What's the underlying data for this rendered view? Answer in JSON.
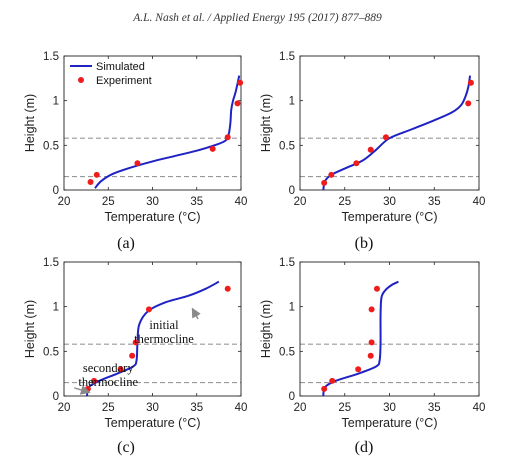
{
  "header": "A.L. Nash et al. / Applied Energy 195 (2017) 877–889",
  "colors": {
    "simulated": "#1f23c4",
    "experiment": "#ee1c1c",
    "dashed": "#999999",
    "arrow": "#8a8a8a"
  },
  "chart_data": [
    {
      "type": "line",
      "panel_label": "(a)",
      "xlabel": "Temperature (°C)",
      "ylabel": "Height (m)",
      "xlim": [
        20,
        40
      ],
      "ylim": [
        0,
        1.5
      ],
      "xticks": [
        20,
        25,
        30,
        35,
        40
      ],
      "yticks": [
        0,
        0.5,
        1,
        1.5
      ],
      "tick_labels_y": [
        "0",
        "0.5",
        "1",
        "1.5"
      ],
      "dashed_lines_y": [
        0.15,
        0.58
      ],
      "legend": {
        "position": "top-left",
        "entries": [
          "Simulated",
          "Experiment"
        ]
      },
      "series": [
        {
          "name": "Simulated",
          "kind": "line",
          "x": [
            23.5,
            24.2,
            25.5,
            27.5,
            30.0,
            32.5,
            35.0,
            37.0,
            38.2,
            38.6,
            38.8,
            38.9,
            39.1,
            39.4,
            39.8
          ],
          "y": [
            0.02,
            0.1,
            0.18,
            0.25,
            0.32,
            0.38,
            0.44,
            0.5,
            0.55,
            0.62,
            0.75,
            0.9,
            1.0,
            1.1,
            1.28
          ]
        },
        {
          "name": "Experiment",
          "kind": "scatter",
          "x": [
            23.0,
            23.7,
            28.3,
            36.8,
            38.5,
            39.6,
            39.9
          ],
          "y": [
            0.09,
            0.17,
            0.3,
            0.46,
            0.59,
            0.97,
            1.2
          ]
        }
      ]
    },
    {
      "type": "line",
      "panel_label": "(b)",
      "xlabel": "Temperature (°C)",
      "ylabel": "Height (m)",
      "xlim": [
        20,
        40
      ],
      "ylim": [
        0,
        1.5
      ],
      "xticks": [
        20,
        25,
        30,
        35,
        40
      ],
      "yticks": [
        0,
        0.5,
        1,
        1.5
      ],
      "tick_labels_y": [
        "0",
        "0.5",
        "1",
        "1.5"
      ],
      "dashed_lines_y": [
        0.15,
        0.58
      ],
      "series": [
        {
          "name": "Simulated",
          "kind": "line",
          "x": [
            22.6,
            22.8,
            23.5,
            25.0,
            27.0,
            28.5,
            30.0,
            32.5,
            35.0,
            37.0,
            38.0,
            38.5,
            38.8,
            39.0
          ],
          "y": [
            0.0,
            0.1,
            0.17,
            0.24,
            0.33,
            0.45,
            0.58,
            0.68,
            0.78,
            0.87,
            0.95,
            1.05,
            1.15,
            1.28
          ]
        },
        {
          "name": "Experiment",
          "kind": "scatter",
          "x": [
            22.7,
            23.5,
            26.3,
            27.9,
            29.6,
            38.8,
            39.1
          ],
          "y": [
            0.08,
            0.17,
            0.3,
            0.45,
            0.59,
            0.97,
            1.2
          ]
        }
      ]
    },
    {
      "type": "line",
      "panel_label": "(c)",
      "xlabel": "Temperature (°C)",
      "ylabel": "Height (m)",
      "xlim": [
        20,
        40
      ],
      "ylim": [
        0,
        1.5
      ],
      "xticks": [
        20,
        25,
        30,
        35,
        40
      ],
      "yticks": [
        0,
        0.5,
        1,
        1.5
      ],
      "tick_labels_y": [
        "0",
        "0.5",
        "1",
        "1.5"
      ],
      "dashed_lines_y": [
        0.15,
        0.58
      ],
      "annotations": [
        {
          "lines": [
            "initial",
            "thermocline"
          ],
          "x": 31.3,
          "y": 0.75,
          "arrow_to": [
            34.5,
            0.98
          ]
        },
        {
          "lines": [
            "secondary",
            "thermocline"
          ],
          "x": 25.0,
          "y": 0.27,
          "arrow_to": [
            22.9,
            0.04
          ]
        }
      ],
      "series": [
        {
          "name": "Simulated",
          "kind": "line",
          "x": [
            22.6,
            22.8,
            24.0,
            26.0,
            27.8,
            28.2,
            28.3,
            28.5,
            29.5,
            31.5,
            34.0,
            36.0,
            37.5
          ],
          "y": [
            0.0,
            0.1,
            0.17,
            0.25,
            0.33,
            0.4,
            0.6,
            0.8,
            0.95,
            1.05,
            1.12,
            1.2,
            1.28
          ]
        },
        {
          "name": "Experiment",
          "kind": "scatter",
          "x": [
            22.7,
            23.4,
            26.4,
            27.7,
            28.1,
            29.6,
            38.5
          ],
          "y": [
            0.08,
            0.17,
            0.3,
            0.45,
            0.6,
            0.97,
            1.2
          ]
        }
      ]
    },
    {
      "type": "line",
      "panel_label": "(d)",
      "xlabel": "Temperature (°C)",
      "ylabel": "Height (m)",
      "xlim": [
        20,
        40
      ],
      "ylim": [
        0,
        1.5
      ],
      "xticks": [
        20,
        25,
        30,
        35,
        40
      ],
      "yticks": [
        0,
        0.5,
        1,
        1.5
      ],
      "tick_labels_y": [
        "0",
        "0.5",
        "1",
        "1.5"
      ],
      "dashed_lines_y": [
        0.15,
        0.58
      ],
      "series": [
        {
          "name": "Simulated",
          "kind": "line",
          "x": [
            22.6,
            22.8,
            24.0,
            26.5,
            28.5,
            28.9,
            29.0,
            29.0,
            29.1,
            29.5,
            30.2,
            31.0
          ],
          "y": [
            0.0,
            0.1,
            0.17,
            0.25,
            0.33,
            0.4,
            0.6,
            0.9,
            1.1,
            1.18,
            1.24,
            1.28
          ]
        },
        {
          "name": "Experiment",
          "kind": "scatter",
          "x": [
            22.7,
            23.6,
            26.5,
            27.9,
            28.0,
            28.0,
            28.6
          ],
          "y": [
            0.08,
            0.17,
            0.3,
            0.45,
            0.6,
            0.97,
            1.2
          ]
        }
      ]
    }
  ]
}
